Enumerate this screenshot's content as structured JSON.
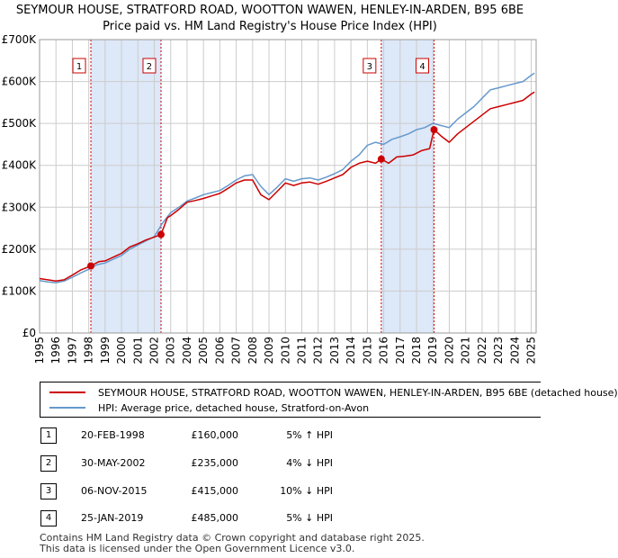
{
  "title_line1": "SEYMOUR HOUSE, STRATFORD ROAD, WOOTTON WAWEN, HENLEY-IN-ARDEN, B95 6BE",
  "title_line2": "Price paid vs. HM Land Registry's House Price Index (HPI)",
  "legend": {
    "red_label": "SEYMOUR HOUSE, STRATFORD ROAD, WOOTTON WAWEN, HENLEY-IN-ARDEN, B95 6BE (detached house)",
    "blue_label": "HPI: Average price, detached house, Stratford-on-Avon"
  },
  "transactions": [
    {
      "num": "1",
      "date": "20-FEB-1998",
      "price": "£160,000",
      "hpi": "5% ↑ HPI"
    },
    {
      "num": "2",
      "date": "30-MAY-2002",
      "price": "£235,000",
      "hpi": "4% ↓ HPI"
    },
    {
      "num": "3",
      "date": "06-NOV-2015",
      "price": "£415,000",
      "hpi": "10% ↓ HPI"
    },
    {
      "num": "4",
      "date": "25-JAN-2019",
      "price": "£485,000",
      "hpi": "5% ↓ HPI"
    }
  ],
  "footer_line1": "Contains HM Land Registry data © Crown copyright and database right 2025.",
  "footer_line2": "This data is licensed under the Open Government Licence v3.0.",
  "colors": {
    "red": "#cc0000",
    "blue": "#6699cc",
    "shade": "#dde8f8",
    "grid": "#cccccc"
  },
  "chart_data": {
    "type": "line",
    "title": "Price paid vs. HM Land Registry's House Price Index (HPI)",
    "xlabel": "",
    "ylabel": "",
    "xlim": [
      1995,
      2025.3
    ],
    "ylim": [
      0,
      700000
    ],
    "x_ticks": [
      "1995",
      "1996",
      "1997",
      "1998",
      "1999",
      "2000",
      "2001",
      "2002",
      "2003",
      "2004",
      "2005",
      "2006",
      "2007",
      "2008",
      "2009",
      "2010",
      "2011",
      "2012",
      "2013",
      "2014",
      "2015",
      "2016",
      "2017",
      "2018",
      "2019",
      "2020",
      "2021",
      "2022",
      "2023",
      "2024",
      "2025"
    ],
    "y_ticks": [
      {
        "value": 0,
        "label": "£0"
      },
      {
        "value": 100000,
        "label": "£100K"
      },
      {
        "value": 200000,
        "label": "£200K"
      },
      {
        "value": 300000,
        "label": "£300K"
      },
      {
        "value": 400000,
        "label": "£400K"
      },
      {
        "value": 500000,
        "label": "£500K"
      },
      {
        "value": 600000,
        "label": "£600K"
      },
      {
        "value": 700000,
        "label": "£700K"
      }
    ],
    "shaded_ranges": [
      [
        1998.13,
        2002.41
      ],
      [
        2015.85,
        2019.07
      ]
    ],
    "markers": [
      {
        "label": "1",
        "x": 1998.13
      },
      {
        "label": "2",
        "x": 2002.41
      },
      {
        "label": "3",
        "x": 2015.85
      },
      {
        "label": "4",
        "x": 2019.07
      }
    ],
    "sales": [
      {
        "x": 1998.13,
        "y": 160000
      },
      {
        "x": 2002.41,
        "y": 235000
      },
      {
        "x": 2015.85,
        "y": 415000
      },
      {
        "x": 2019.07,
        "y": 485000
      }
    ],
    "series": [
      {
        "name": "SEYMOUR HOUSE, STRATFORD ROAD, WOOTTON WAWEN, HENLEY-IN-ARDEN, B95 6BE (detached house)",
        "color": "#cc0000",
        "x": [
          1995,
          1995.5,
          1996,
          1996.5,
          1997,
          1997.5,
          1998.13,
          1998.6,
          1999,
          1999.5,
          2000,
          2000.5,
          2001,
          2001.5,
          2002,
          2002.41,
          2002.8,
          2003,
          2003.5,
          2004,
          2004.5,
          2005,
          2005.5,
          2006,
          2006.5,
          2007,
          2007.5,
          2008,
          2008.5,
          2009,
          2009.5,
          2010,
          2010.5,
          2011,
          2011.5,
          2012,
          2012.5,
          2013,
          2013.5,
          2014,
          2014.5,
          2015,
          2015.5,
          2015.85,
          2016.3,
          2016.8,
          2017.3,
          2017.8,
          2018.3,
          2018.8,
          2019.07,
          2019.5,
          2020,
          2020.5,
          2021,
          2021.5,
          2022,
          2022.5,
          2023,
          2023.5,
          2024,
          2024.5,
          2025,
          2025.2
        ],
        "y": [
          130000,
          127000,
          124000,
          127000,
          138000,
          150000,
          160000,
          170000,
          172000,
          181000,
          190000,
          205000,
          213000,
          222000,
          229000,
          235000,
          275000,
          280000,
          295000,
          312000,
          316000,
          321000,
          327000,
          333000,
          345000,
          358000,
          365000,
          365000,
          330000,
          318000,
          338000,
          358000,
          352000,
          358000,
          360000,
          355000,
          362000,
          370000,
          378000,
          395000,
          405000,
          410000,
          405000,
          415000,
          405000,
          420000,
          422000,
          425000,
          435000,
          440000,
          485000,
          470000,
          455000,
          475000,
          490000,
          505000,
          520000,
          535000,
          540000,
          545000,
          550000,
          555000,
          570000,
          575000
        ]
      },
      {
        "name": "HPI: Average price, detached house, Stratford-on-Avon",
        "color": "#6699cc",
        "x": [
          1995,
          1995.5,
          1996,
          1996.5,
          1997,
          1997.5,
          1998,
          1998.5,
          1999,
          1999.5,
          2000,
          2000.5,
          2001,
          2001.5,
          2002,
          2002.5,
          2003,
          2003.5,
          2004,
          2004.5,
          2005,
          2005.5,
          2006,
          2006.5,
          2007,
          2007.5,
          2008,
          2008.5,
          2009,
          2009.5,
          2010,
          2010.5,
          2011,
          2011.5,
          2012,
          2012.5,
          2013,
          2013.5,
          2014,
          2014.5,
          2015,
          2015.5,
          2016,
          2016.5,
          2017,
          2017.5,
          2018,
          2018.5,
          2019,
          2019.5,
          2020,
          2020.5,
          2021,
          2021.5,
          2022,
          2022.5,
          2023,
          2023.5,
          2024,
          2024.5,
          2025,
          2025.2
        ],
        "y": [
          125000,
          122000,
          120000,
          124000,
          133000,
          143000,
          152000,
          163000,
          167000,
          176000,
          185000,
          200000,
          210000,
          220000,
          230000,
          262000,
          287000,
          300000,
          315000,
          322000,
          330000,
          335000,
          340000,
          352000,
          365000,
          375000,
          378000,
          350000,
          330000,
          348000,
          368000,
          362000,
          368000,
          370000,
          365000,
          372000,
          380000,
          390000,
          410000,
          425000,
          448000,
          455000,
          450000,
          462000,
          468000,
          475000,
          485000,
          490000,
          500000,
          495000,
          490000,
          510000,
          525000,
          540000,
          560000,
          580000,
          585000,
          590000,
          595000,
          600000,
          615000,
          620000
        ]
      }
    ]
  }
}
